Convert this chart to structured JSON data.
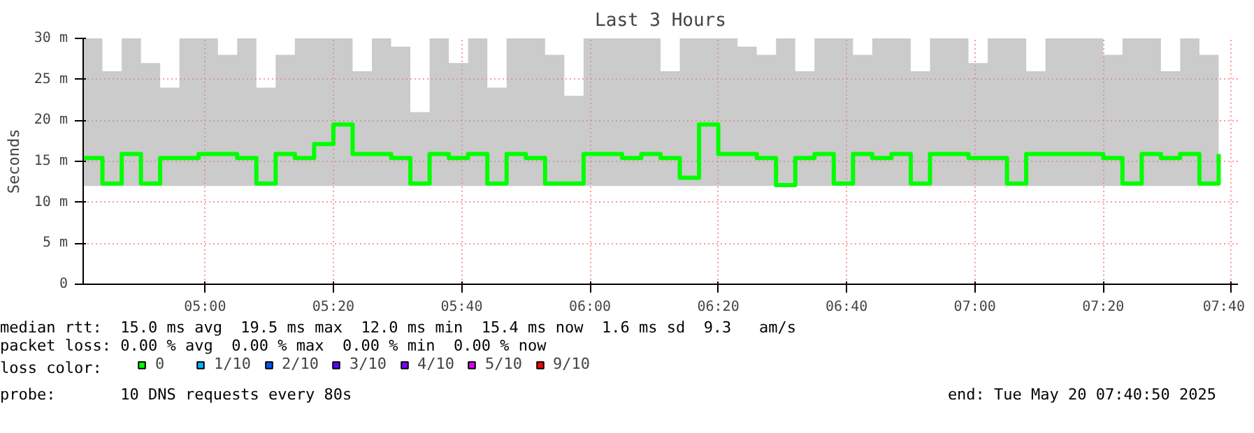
{
  "chart_data": {
    "type": "step",
    "title": "Last 3 Hours",
    "ylabel": "Seconds",
    "legend_title": "loss color:",
    "legend": "bottom",
    "grid": true,
    "x": [
      "2025-05-20T04:41",
      "2025-05-20T04:44",
      "2025-05-20T04:47",
      "2025-05-20T04:50",
      "2025-05-20T04:53",
      "2025-05-20T04:56",
      "2025-05-20T04:59",
      "2025-05-20T05:02",
      "2025-05-20T05:05",
      "2025-05-20T05:08",
      "2025-05-20T05:11",
      "2025-05-20T05:14",
      "2025-05-20T05:17",
      "2025-05-20T05:20",
      "2025-05-20T05:23",
      "2025-05-20T05:26",
      "2025-05-20T05:29",
      "2025-05-20T05:32",
      "2025-05-20T05:35",
      "2025-05-20T05:38",
      "2025-05-20T05:41",
      "2025-05-20T05:44",
      "2025-05-20T05:47",
      "2025-05-20T05:50",
      "2025-05-20T05:53",
      "2025-05-20T05:56",
      "2025-05-20T05:59",
      "2025-05-20T06:02",
      "2025-05-20T06:05",
      "2025-05-20T06:08",
      "2025-05-20T06:11",
      "2025-05-20T06:14",
      "2025-05-20T06:17",
      "2025-05-20T06:20",
      "2025-05-20T06:23",
      "2025-05-20T06:26",
      "2025-05-20T06:29",
      "2025-05-20T06:32",
      "2025-05-20T06:35",
      "2025-05-20T06:38",
      "2025-05-20T06:41",
      "2025-05-20T06:44",
      "2025-05-20T06:47",
      "2025-05-20T06:50",
      "2025-05-20T06:53",
      "2025-05-20T06:56",
      "2025-05-20T06:59",
      "2025-05-20T07:02",
      "2025-05-20T07:05",
      "2025-05-20T07:08",
      "2025-05-20T07:11",
      "2025-05-20T07:14",
      "2025-05-20T07:17",
      "2025-05-20T07:20",
      "2025-05-20T07:23",
      "2025-05-20T07:26",
      "2025-05-20T07:29",
      "2025-05-20T07:32",
      "2025-05-20T07:35",
      "2025-05-20T07:38"
    ],
    "series": [
      {
        "name": "0",
        "color": "#00ff00",
        "values": [
          15.4,
          12.3,
          15.9,
          12.3,
          15.4,
          15.4,
          15.9,
          15.9,
          15.4,
          12.3,
          15.9,
          15.4,
          17.1,
          19.5,
          15.9,
          15.9,
          15.4,
          12.3,
          15.9,
          15.4,
          15.9,
          12.3,
          15.9,
          15.4,
          12.3,
          12.3,
          15.9,
          15.9,
          15.4,
          15.9,
          15.4,
          13.0,
          19.5,
          15.9,
          15.9,
          15.4,
          12.1,
          15.4,
          15.9,
          12.3,
          15.9,
          15.4,
          15.9,
          12.3,
          15.9,
          15.9,
          15.4,
          15.4,
          12.3,
          15.9,
          15.9,
          15.9,
          15.9,
          15.4,
          12.3,
          15.9,
          15.4,
          15.9,
          12.3,
          15.9
        ],
        "lower": [
          12,
          12,
          12,
          12,
          12,
          12,
          12,
          12,
          12,
          12,
          12,
          12,
          12,
          12,
          12,
          12,
          12,
          12,
          12,
          12,
          12,
          12,
          12,
          12,
          12,
          12,
          12,
          12,
          12,
          12,
          12,
          12,
          12,
          12,
          12,
          12,
          12,
          12,
          12,
          12,
          12,
          12,
          12,
          12,
          12,
          12,
          12,
          12,
          12,
          12,
          12,
          12,
          12,
          12,
          12,
          12,
          12,
          12,
          12,
          12
        ],
        "upper": [
          30,
          26,
          30,
          27,
          24,
          30,
          30,
          28,
          30,
          24,
          28,
          30,
          30,
          30,
          26,
          30,
          29,
          21,
          30,
          27,
          30,
          24,
          30,
          30,
          28,
          23,
          30,
          30,
          30,
          30,
          26,
          30,
          30,
          30,
          29,
          28,
          30,
          26,
          30,
          30,
          28,
          30,
          30,
          26,
          30,
          30,
          27,
          30,
          30,
          26,
          30,
          30,
          30,
          28,
          30,
          30,
          26,
          30,
          28,
          24
        ]
      },
      {
        "name": "1/10",
        "color": "#00b8ff",
        "values": [
          null,
          null,
          null,
          null,
          null,
          null,
          null,
          null,
          null,
          null,
          null,
          null,
          null,
          null,
          null,
          null,
          null,
          null,
          null,
          null,
          null,
          null,
          null,
          null,
          null,
          null,
          null,
          null,
          null,
          null,
          null,
          null,
          null,
          null,
          null,
          null,
          null,
          null,
          null,
          null,
          null,
          null,
          null,
          null,
          null,
          null,
          null,
          null,
          null,
          null,
          null,
          null,
          null,
          null,
          null,
          null,
          null,
          null,
          null,
          null
        ]
      },
      {
        "name": "2/10",
        "color": "#0059ff",
        "values": [
          null,
          null,
          null,
          null,
          null,
          null,
          null,
          null,
          null,
          null,
          null,
          null,
          null,
          null,
          null,
          null,
          null,
          null,
          null,
          null,
          null,
          null,
          null,
          null,
          null,
          null,
          null,
          null,
          null,
          null,
          null,
          null,
          null,
          null,
          null,
          null,
          null,
          null,
          null,
          null,
          null,
          null,
          null,
          null,
          null,
          null,
          null,
          null,
          null,
          null,
          null,
          null,
          null,
          null,
          null,
          null,
          null,
          null,
          null,
          null
        ]
      },
      {
        "name": "3/10",
        "color": "#5e00ff",
        "values": [
          null,
          null,
          null,
          null,
          null,
          null,
          null,
          null,
          null,
          null,
          null,
          null,
          null,
          null,
          null,
          null,
          null,
          null,
          null,
          null,
          null,
          null,
          null,
          null,
          null,
          null,
          null,
          null,
          null,
          null,
          null,
          null,
          null,
          null,
          null,
          null,
          null,
          null,
          null,
          null,
          null,
          null,
          null,
          null,
          null,
          null,
          null,
          null,
          null,
          null,
          null,
          null,
          null,
          null,
          null,
          null,
          null,
          null,
          null,
          null
        ]
      },
      {
        "name": "4/10",
        "color": "#7e00ff",
        "values": [
          null,
          null,
          null,
          null,
          null,
          null,
          null,
          null,
          null,
          null,
          null,
          null,
          null,
          null,
          null,
          null,
          null,
          null,
          null,
          null,
          null,
          null,
          null,
          null,
          null,
          null,
          null,
          null,
          null,
          null,
          null,
          null,
          null,
          null,
          null,
          null,
          null,
          null,
          null,
          null,
          null,
          null,
          null,
          null,
          null,
          null,
          null,
          null,
          null,
          null,
          null,
          null,
          null,
          null,
          null,
          null,
          null,
          null,
          null,
          null
        ]
      },
      {
        "name": "5/10",
        "color": "#dd00ff",
        "values": [
          null,
          null,
          null,
          null,
          null,
          null,
          null,
          null,
          null,
          null,
          null,
          null,
          null,
          null,
          null,
          null,
          null,
          null,
          null,
          null,
          null,
          null,
          null,
          null,
          null,
          null,
          null,
          null,
          null,
          null,
          null,
          null,
          null,
          null,
          null,
          null,
          null,
          null,
          null,
          null,
          null,
          null,
          null,
          null,
          null,
          null,
          null,
          null,
          null,
          null,
          null,
          null,
          null,
          null,
          null,
          null,
          null,
          null,
          null,
          null
        ]
      },
      {
        "name": "9/10",
        "color": "#ff0000",
        "values": [
          null,
          null,
          null,
          null,
          null,
          null,
          null,
          null,
          null,
          null,
          null,
          null,
          null,
          null,
          null,
          null,
          null,
          null,
          null,
          null,
          null,
          null,
          null,
          null,
          null,
          null,
          null,
          null,
          null,
          null,
          null,
          null,
          null,
          null,
          null,
          null,
          null,
          null,
          null,
          null,
          null,
          null,
          null,
          null,
          null,
          null,
          null,
          null,
          null,
          null,
          null,
          null,
          null,
          null,
          null,
          null,
          null,
          null,
          null,
          null
        ]
      }
    ],
    "xlim": [
      "2025-05-20T04:41",
      "2025-05-20T07:41"
    ],
    "xticks": [
      {
        "value": "2025-05-20T05:00",
        "label": "05:00"
      },
      {
        "value": "2025-05-20T05:20",
        "label": "05:20"
      },
      {
        "value": "2025-05-20T05:40",
        "label": "05:40"
      },
      {
        "value": "2025-05-20T06:00",
        "label": "06:00"
      },
      {
        "value": "2025-05-20T06:20",
        "label": "06:20"
      },
      {
        "value": "2025-05-20T06:40",
        "label": "06:40"
      },
      {
        "value": "2025-05-20T07:00",
        "label": "07:00"
      },
      {
        "value": "2025-05-20T07:20",
        "label": "07:20"
      },
      {
        "value": "2025-05-20T07:40",
        "label": "07:40"
      }
    ],
    "ylim": [
      0,
      30
    ],
    "yticks": [
      0,
      {
        "value": 5,
        "label": "5 m"
      },
      {
        "value": 10,
        "label": "10 m"
      },
      {
        "value": 15,
        "label": "15 m"
      },
      {
        "value": 20,
        "label": "20 m"
      },
      {
        "value": 25,
        "label": "25 m"
      },
      {
        "value": 30,
        "label": "30 m"
      }
    ],
    "annotations": [
      "median rtt:  15.0 ms avg  19.5 ms max  12.0 ms min  15.4 ms now  1.6 ms sd  9.3   am/s",
      "packet loss: 0.00 % avg  0.00 % max  0.00 % min  0.00 % now",
      "probe:       10 DNS requests every 80s",
      "end: Tue May 20 07:40:50 2025"
    ]
  }
}
